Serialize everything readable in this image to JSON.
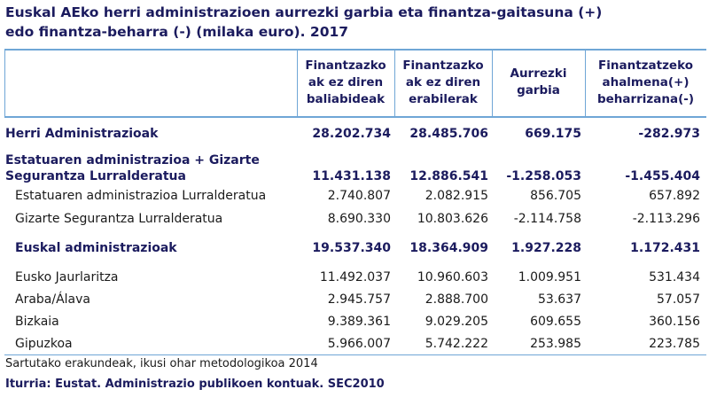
{
  "title": [
    "Euskal AEko herri administrazioen aurrezki garbia eta finantza-gaitasuna (+)",
    "edo finantza-beharra (-)  (milaka euro). 2017"
  ],
  "table": {
    "columns": [
      [
        "Finantzazko",
        "ak ez diren",
        "baliabideak"
      ],
      [
        "Finantzazko",
        "ak ez diren",
        "erabilerak"
      ],
      [
        "Aurrezki",
        "garbia"
      ],
      [
        "Finantzatzeko",
        "ahalmena(+)",
        "beharrizana(-)"
      ]
    ],
    "rows": [
      {
        "label": [
          "Herri Administrazioak"
        ],
        "bold": true,
        "indent": 0,
        "cells": [
          "28.202.734",
          "28.485.706",
          "669.175",
          "-282.973"
        ]
      },
      {
        "label": [
          "Estatuaren administrazioa + Gizarte",
          "Segurantza Lurralderatua"
        ],
        "bold": true,
        "indent": 0,
        "cells": [
          "11.431.138",
          "12.886.541",
          "-1.258.053",
          "-1.455.404"
        ]
      },
      {
        "label": [
          "Estatuaren administrazioa Lurralderatua"
        ],
        "bold": false,
        "indent": 1,
        "cells": [
          "2.740.807",
          "2.082.915",
          "856.705",
          "657.892"
        ]
      },
      {
        "label": [
          "Gizarte Segurantza Lurralderatua"
        ],
        "bold": false,
        "indent": 1,
        "cells": [
          "8.690.330",
          "10.803.626",
          "-2.114.758",
          "-2.113.296"
        ]
      },
      {
        "label": [
          "Euskal administrazioak"
        ],
        "bold": true,
        "indent": 1,
        "cells": [
          "19.537.340",
          "18.364.909",
          "1.927.228",
          "1.172.431"
        ]
      },
      {
        "label": [
          "Eusko Jaurlaritza"
        ],
        "bold": false,
        "indent": 1,
        "cells": [
          "11.492.037",
          "10.960.603",
          "1.009.951",
          "531.434"
        ]
      },
      {
        "label": [
          "Araba/Álava"
        ],
        "bold": false,
        "indent": 1,
        "cells": [
          "2.945.757",
          "2.888.700",
          "53.637",
          "57.057"
        ]
      },
      {
        "label": [
          "Bizkaia"
        ],
        "bold": false,
        "indent": 1,
        "cells": [
          "9.389.361",
          "9.029.205",
          "609.655",
          "360.156"
        ]
      },
      {
        "label": [
          "Gipuzkoa"
        ],
        "bold": false,
        "indent": 1,
        "cells": [
          "5.966.007",
          "5.742.222",
          "253.985",
          "223.785"
        ]
      }
    ]
  },
  "notes": [
    "Sartutako erakundeak, ikusi ohar metodologikoa 2014",
    "Iturria: Eustat. Administrazio publikoen kontuak. SEC2010"
  ]
}
